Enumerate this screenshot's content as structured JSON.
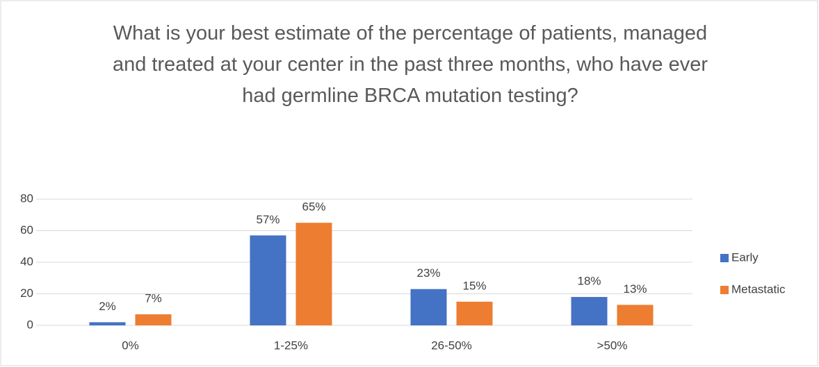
{
  "chart_data": {
    "type": "bar",
    "title": "What is your best estimate of the percentage of patients, managed and treated at your center in the past three months, who have ever had germline BRCA mutation testing?",
    "categories": [
      "0%",
      "1-25%",
      "26-50%",
      ">50%"
    ],
    "series": [
      {
        "name": "Early",
        "color": "#4472c4",
        "values": [
          2,
          57,
          23,
          18
        ],
        "value_labels": [
          "2%",
          "57%",
          "23%",
          "18%"
        ]
      },
      {
        "name": "Metastatic",
        "color": "#ed7d31",
        "values": [
          7,
          65,
          15,
          13
        ],
        "value_labels": [
          "7%",
          "65%",
          "15%",
          "13%"
        ]
      }
    ],
    "ylim": [
      0,
      80
    ],
    "yticks": [
      0,
      20,
      40,
      60,
      80
    ],
    "grid": true,
    "legend": "right"
  }
}
